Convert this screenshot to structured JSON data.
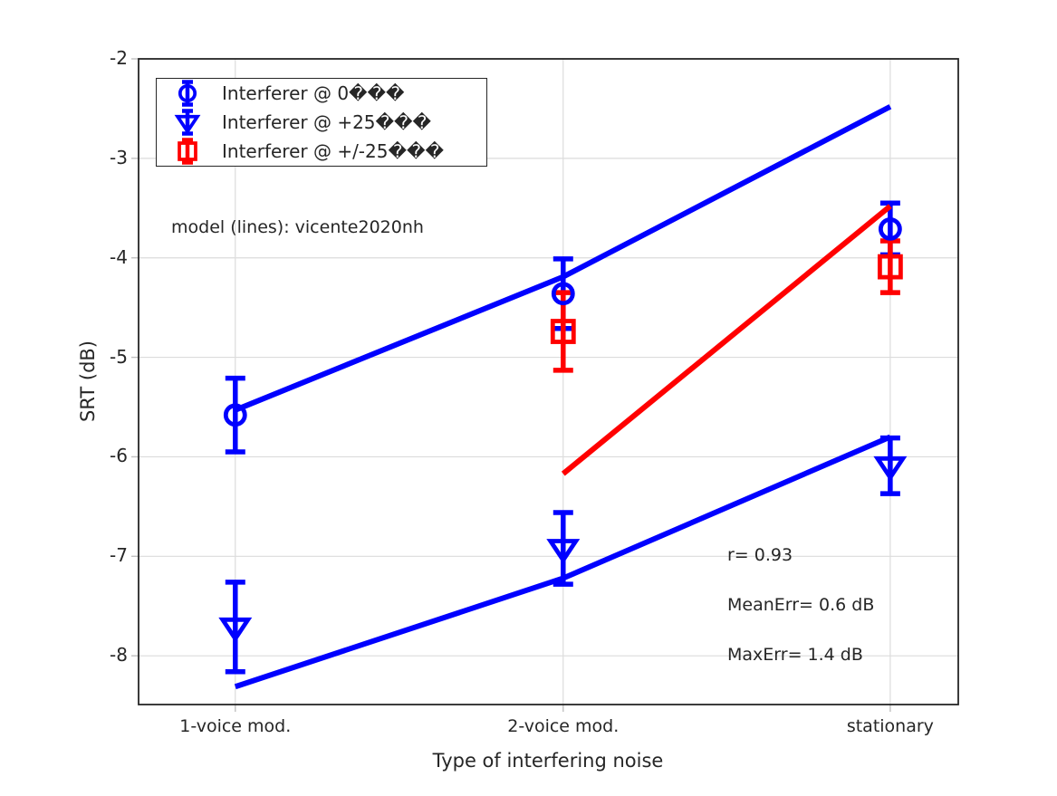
{
  "figure": {
    "background": "#ffffff",
    "grid_color": "#dcdcdc",
    "axis_color": "#262626"
  },
  "chart_data": {
    "type": "scatter",
    "title": "",
    "xlabel": "Type of interfering noise",
    "ylabel": "SRT (dB)",
    "categories": [
      "1-voice mod.",
      "2-voice mod.",
      "stationary"
    ],
    "ylim": [
      -8.49,
      -2
    ],
    "yticks": [
      -2,
      -3,
      -4,
      -5,
      -6,
      -7,
      -8
    ],
    "ytick_labels": [
      "-2",
      "-3",
      "-4",
      "-5",
      "-6",
      "-7",
      "-8"
    ],
    "grid": true,
    "legend_position": "top-left",
    "series": [
      {
        "name": "Interferer @ 0���",
        "marker": "circle",
        "color": "#0000ff",
        "values": [
          -5.58,
          -4.36,
          -3.71
        ],
        "errors": [
          0.37,
          0.35,
          0.26
        ]
      },
      {
        "name": "Interferer @ +25���",
        "marker": "triangle-down",
        "color": "#0000ff",
        "values": [
          -7.71,
          -6.92,
          -6.09
        ],
        "errors": [
          0.45,
          0.36,
          0.28
        ]
      },
      {
        "name": "Interferer @ +/-25���",
        "marker": "square",
        "color": "#ff0000",
        "values": [
          null,
          -4.74,
          -4.09
        ],
        "errors": [
          null,
          0.39,
          0.26
        ]
      }
    ],
    "model_lines": [
      {
        "name": "model-line-0deg",
        "color": "#0000ff",
        "values": [
          -5.53,
          -4.19,
          -2.48
        ]
      },
      {
        "name": "model-line-p25deg",
        "color": "#0000ff",
        "values": [
          -8.31,
          -7.22,
          -5.8
        ]
      },
      {
        "name": "model-line-pm25deg",
        "color": "#ff0000",
        "values": [
          null,
          -6.17,
          -3.48
        ]
      }
    ],
    "annotations": {
      "model_label": "model (lines): vicente2020nh",
      "r": "r= 0.93",
      "mean_err": "MeanErr= 0.6 dB",
      "max_err": "MaxErr= 1.4 dB"
    }
  }
}
